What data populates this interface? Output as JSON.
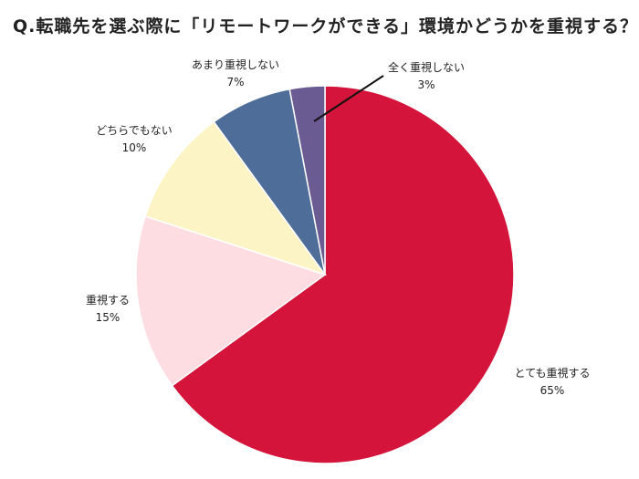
{
  "chart_data": {
    "type": "pie",
    "title": "Q.転職先を選ぶ際に「リモートワークができる」環境かどうかを重視する？",
    "start": "top",
    "direction": "clockwise",
    "slices": [
      {
        "label": "とても重視する",
        "value": 65,
        "value_label": "65%",
        "color": "#d4143a"
      },
      {
        "label": "重視する",
        "value": 15,
        "value_label": "15%",
        "color": "#fddde2"
      },
      {
        "label": "どちらでもない",
        "value": 10,
        "value_label": "10%",
        "color": "#fdf4c6"
      },
      {
        "label": "あまり重視しない",
        "value": 7,
        "value_label": "7%",
        "color": "#4e6d98"
      },
      {
        "label": "全く重視しない",
        "value": 3,
        "value_label": "3%",
        "color": "#6b5b93"
      }
    ]
  }
}
